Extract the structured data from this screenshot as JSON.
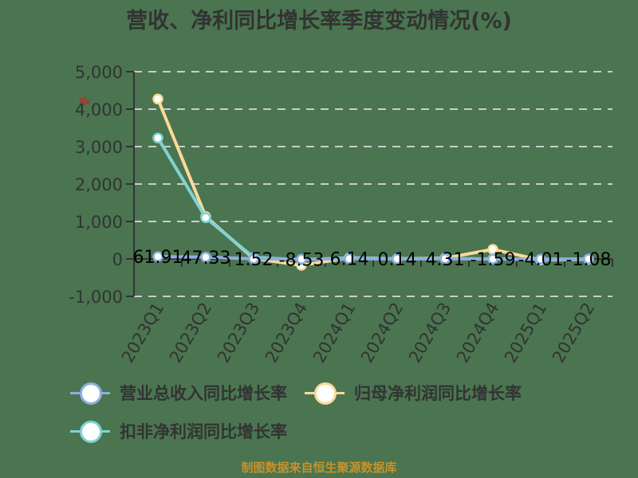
{
  "title": "营收、净利同比增长率季度变动情况(%)",
  "unit_mark": "%",
  "source": "制图数据来自恒生聚源数据库",
  "legend": [
    {
      "label": "营业总收入同比增长率",
      "color": "#8eaee0"
    },
    {
      "label": "归母净利润同比增长率",
      "color": "#fbd99a"
    },
    {
      "label": "扣非净利润同比增长率",
      "color": "#7fd3d6"
    }
  ],
  "chart_data": {
    "type": "line",
    "title": "营收、净利同比增长率季度变动情况(%)",
    "xlabel": "",
    "ylabel": "",
    "ylim": [
      -1000,
      5000
    ],
    "yticks": [
      -1000,
      0,
      1000,
      2000,
      3000,
      4000,
      5000
    ],
    "ytick_labels": [
      "-1,000",
      "0",
      "1,000",
      "2,000",
      "3,000",
      "4,000",
      "5,000"
    ],
    "grid": true,
    "legend_position": "bottom",
    "categories": [
      "2023Q1",
      "2023Q2",
      "2023Q3",
      "2023Q4",
      "2024Q1",
      "2024Q2",
      "2024Q3",
      "2024Q4",
      "2025Q1",
      "2025Q2"
    ],
    "series": [
      {
        "name": "营业总收入同比增长率",
        "color": "#8eaee0",
        "values": [
          61.91,
          47.33,
          1.52,
          -8.53,
          6.14,
          0.14,
          4.31,
          -1.59,
          -4.01,
          -1.08
        ],
        "data_labels": [
          "61.91",
          "47.33",
          "1.52",
          "-8.53",
          "6.14",
          "0.14",
          "4.31",
          "-1.59",
          "-4.01",
          "-1.08"
        ]
      },
      {
        "name": "归母净利润同比增长率",
        "color": "#fbd99a",
        "values": [
          4270,
          1130,
          10,
          -170,
          30,
          5,
          20,
          255,
          -30,
          -10
        ]
      },
      {
        "name": "扣非净利润同比增长率",
        "color": "#7fd3d6",
        "values": [
          3230,
          1100,
          40,
          -20,
          30,
          5,
          10,
          0,
          -20,
          -10
        ]
      }
    ]
  }
}
